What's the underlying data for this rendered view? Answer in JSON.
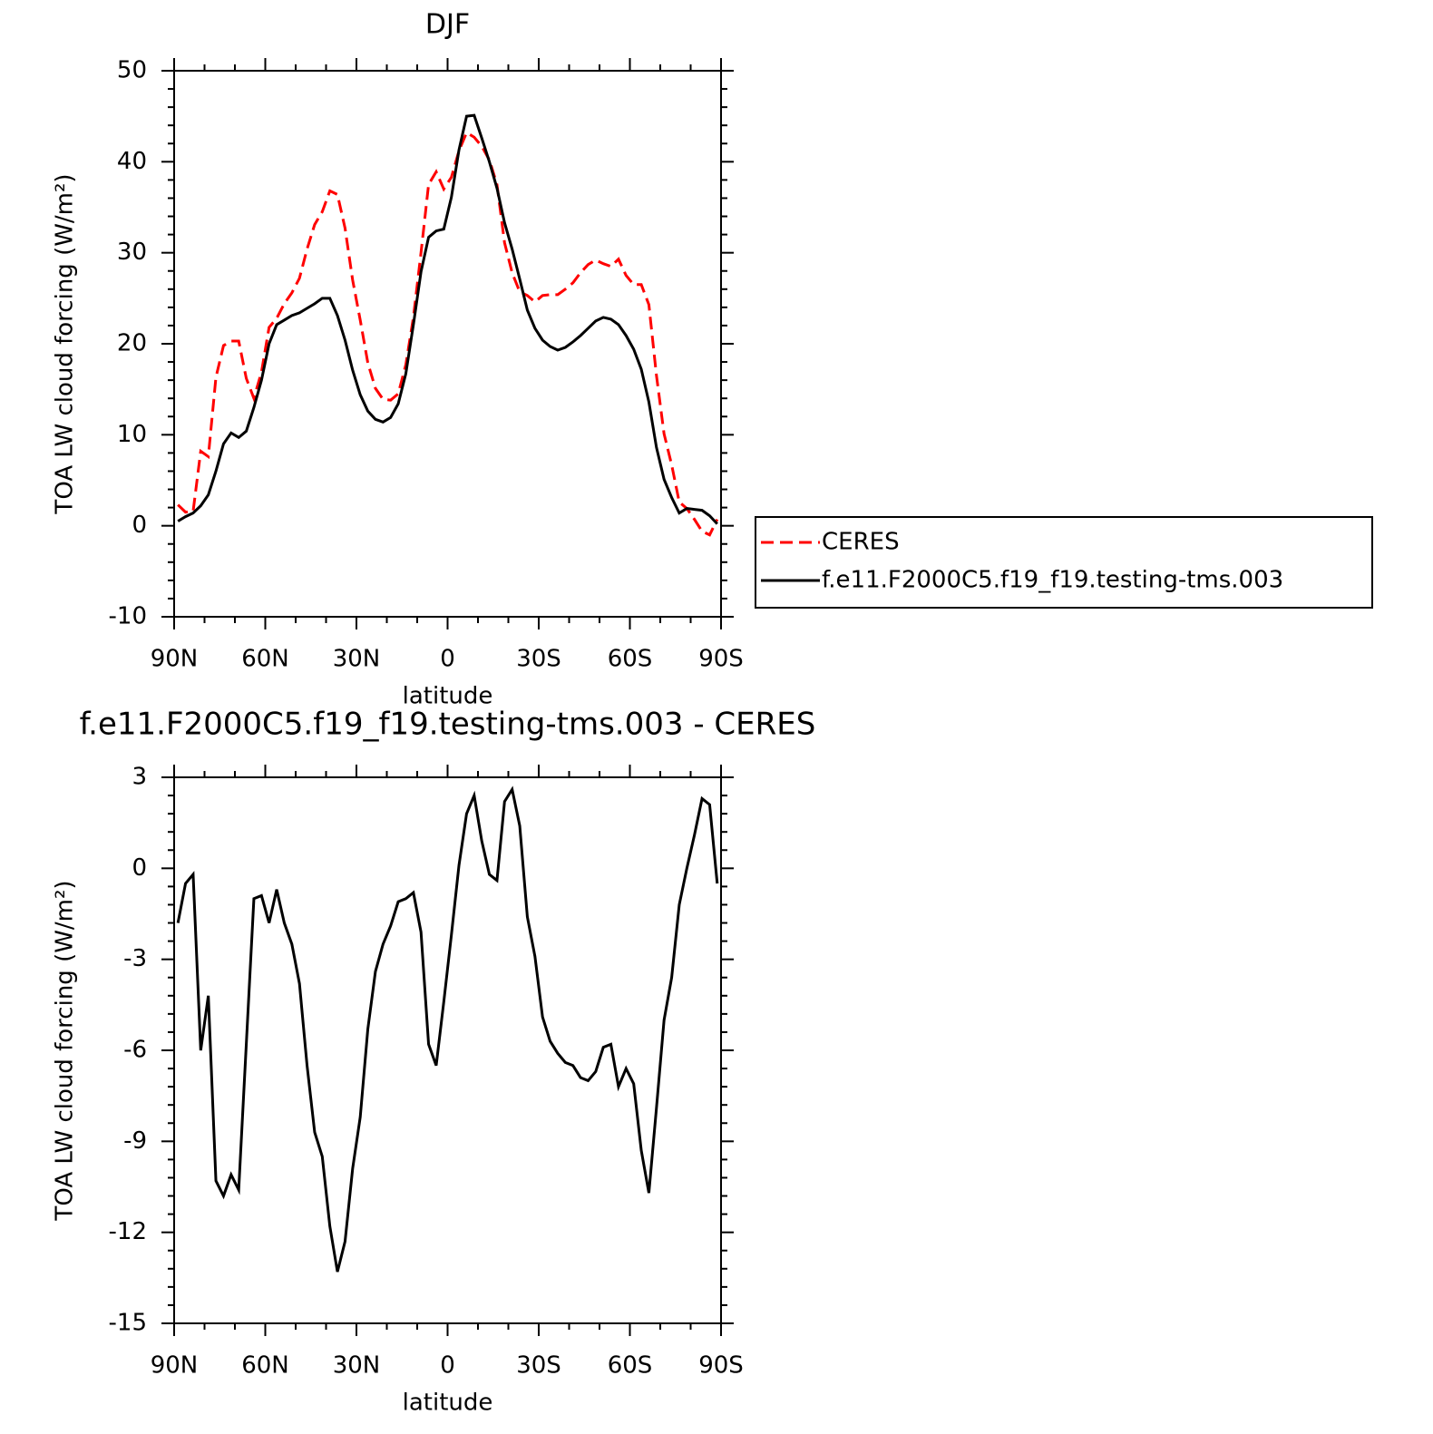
{
  "chart_data": [
    {
      "type": "line",
      "title": "DJF",
      "xlabel": "latitude",
      "ylabel": "TOA LW cloud forcing (W/m²)",
      "x": [
        88.75,
        86.25,
        83.75,
        81.25,
        78.75,
        76.25,
        73.75,
        71.25,
        68.75,
        66.25,
        63.75,
        61.25,
        58.75,
        56.25,
        53.75,
        51.25,
        48.75,
        46.25,
        43.75,
        41.25,
        38.75,
        36.25,
        33.75,
        31.25,
        28.75,
        26.25,
        23.75,
        21.25,
        18.75,
        16.25,
        13.75,
        11.25,
        8.75,
        6.25,
        3.75,
        1.25,
        -1.25,
        -3.75,
        -6.25,
        -8.75,
        -11.25,
        -13.75,
        -16.25,
        -18.75,
        -21.25,
        -23.75,
        -26.25,
        -28.75,
        -31.25,
        -33.75,
        -36.25,
        -38.75,
        -41.25,
        -43.75,
        -46.25,
        -48.75,
        -51.25,
        -53.75,
        -56.25,
        -58.75,
        -61.25,
        -63.75,
        -66.25,
        -68.75,
        -71.25,
        -73.75,
        -76.25,
        -78.75,
        -81.25,
        -83.75,
        -86.25,
        -88.75
      ],
      "series": [
        {
          "name": "CERES",
          "color": "#ff0000",
          "linestyle": "dashed",
          "values": [
            2.3,
            1.5,
            1.6,
            8.2,
            7.6,
            16.3,
            19.8,
            20.3,
            20.3,
            16.2,
            14.0,
            16.9,
            21.8,
            22.8,
            24.4,
            25.6,
            27.2,
            30.4,
            33.1,
            34.5,
            36.8,
            36.4,
            32.7,
            27.0,
            22.6,
            17.9,
            15.1,
            13.9,
            13.8,
            14.5,
            17.7,
            22.9,
            30.0,
            37.5,
            38.9,
            37.0,
            38.3,
            41.2,
            43.2,
            42.7,
            41.7,
            40.2,
            37.5,
            31.1,
            27.8,
            25.7,
            25.3,
            24.6,
            25.3,
            25.4,
            25.4,
            26.0,
            26.7,
            27.8,
            28.7,
            29.2,
            28.8,
            28.5,
            29.3,
            27.5,
            26.5,
            26.5,
            24.3,
            16.5,
            10.1,
            6.7,
            2.6,
            1.9,
            0.7,
            -0.6,
            -1.0,
            0.7
          ]
        },
        {
          "name": "f.e11.F2000C5.f19_f19.testing-tms.003",
          "color": "#000000",
          "linestyle": "solid",
          "values": [
            0.5,
            1.0,
            1.4,
            2.2,
            3.4,
            6.0,
            9.0,
            10.2,
            9.7,
            10.4,
            13.0,
            16.0,
            20.0,
            22.1,
            22.6,
            23.1,
            23.4,
            23.9,
            24.4,
            25.0,
            25.0,
            23.1,
            20.4,
            17.1,
            14.4,
            12.6,
            11.7,
            11.4,
            11.9,
            13.4,
            16.7,
            22.1,
            27.9,
            31.7,
            32.4,
            32.6,
            36.1,
            41.3,
            45.0,
            45.1,
            42.6,
            40.0,
            37.1,
            33.3,
            30.4,
            27.1,
            23.7,
            21.7,
            20.4,
            19.7,
            19.3,
            19.6,
            20.2,
            20.9,
            21.7,
            22.5,
            22.9,
            22.7,
            22.1,
            20.9,
            19.4,
            17.2,
            13.6,
            8.6,
            5.1,
            3.1,
            1.4,
            1.9,
            1.8,
            1.7,
            1.1,
            0.2
          ]
        }
      ],
      "xlim": [
        90,
        -90
      ],
      "xticks": [
        {
          "value": 90,
          "label": "90N"
        },
        {
          "value": 60,
          "label": "60N"
        },
        {
          "value": 30,
          "label": "30N"
        },
        0,
        {
          "value": -30,
          "label": "30S"
        },
        {
          "value": -60,
          "label": "60S"
        },
        {
          "value": -90,
          "label": "90S"
        }
      ],
      "ylim": [
        -10,
        50
      ],
      "yticks": [
        -10,
        0,
        10,
        20,
        30,
        40,
        50
      ],
      "legend": "right"
    },
    {
      "type": "line",
      "title": "f.e11.F2000C5.f19_f19.testing-tms.003 - CERES",
      "xlabel": "latitude",
      "ylabel": "TOA LW cloud forcing (W/m²)",
      "x": [
        88.75,
        86.25,
        83.75,
        81.25,
        78.75,
        76.25,
        73.75,
        71.25,
        68.75,
        66.25,
        63.75,
        61.25,
        58.75,
        56.25,
        53.75,
        51.25,
        48.75,
        46.25,
        43.75,
        41.25,
        38.75,
        36.25,
        33.75,
        31.25,
        28.75,
        26.25,
        23.75,
        21.25,
        18.75,
        16.25,
        13.75,
        11.25,
        8.75,
        6.25,
        3.75,
        1.25,
        -1.25,
        -3.75,
        -6.25,
        -8.75,
        -11.25,
        -13.75,
        -16.25,
        -18.75,
        -21.25,
        -23.75,
        -26.25,
        -28.75,
        -31.25,
        -33.75,
        -36.25,
        -38.75,
        -41.25,
        -43.75,
        -46.25,
        -48.75,
        -51.25,
        -53.75,
        -56.25,
        -58.75,
        -61.25,
        -63.75,
        -66.25,
        -68.75,
        -71.25,
        -73.75,
        -76.25,
        -78.75,
        -81.25,
        -83.75,
        -86.25,
        -88.75
      ],
      "series": [
        {
          "color": "#000000",
          "linestyle": "solid",
          "values": [
            -1.8,
            -0.5,
            -0.2,
            -6.0,
            -4.2,
            -10.3,
            -10.8,
            -10.1,
            -10.6,
            -5.8,
            -1.0,
            -0.9,
            -1.8,
            -0.7,
            -1.8,
            -2.5,
            -3.8,
            -6.5,
            -8.7,
            -9.5,
            -11.8,
            -13.3,
            -12.3,
            -9.9,
            -8.2,
            -5.3,
            -3.4,
            -2.5,
            -1.9,
            -1.1,
            -1.0,
            -0.8,
            -2.1,
            -5.8,
            -6.5,
            -4.4,
            -2.2,
            0.1,
            1.8,
            2.4,
            0.9,
            -0.2,
            -0.4,
            2.2,
            2.6,
            1.4,
            -1.6,
            -2.9,
            -4.9,
            -5.7,
            -6.1,
            -6.4,
            -6.5,
            -6.9,
            -7.0,
            -6.7,
            -5.9,
            -5.8,
            -7.2,
            -6.6,
            -7.1,
            -9.3,
            -10.7,
            -7.9,
            -5.0,
            -3.6,
            -1.2,
            0.0,
            1.1,
            2.3,
            2.1,
            -0.5
          ]
        }
      ],
      "xlim": [
        90,
        -90
      ],
      "xticks": [
        {
          "value": 90,
          "label": "90N"
        },
        {
          "value": 60,
          "label": "60N"
        },
        {
          "value": 30,
          "label": "30N"
        },
        0,
        {
          "value": -30,
          "label": "30S"
        },
        {
          "value": -60,
          "label": "60S"
        },
        {
          "value": -90,
          "label": "90S"
        }
      ],
      "ylim": [
        -15,
        3
      ],
      "yticks": [
        -15,
        -12,
        -9,
        -6,
        -3,
        0,
        3
      ]
    }
  ]
}
